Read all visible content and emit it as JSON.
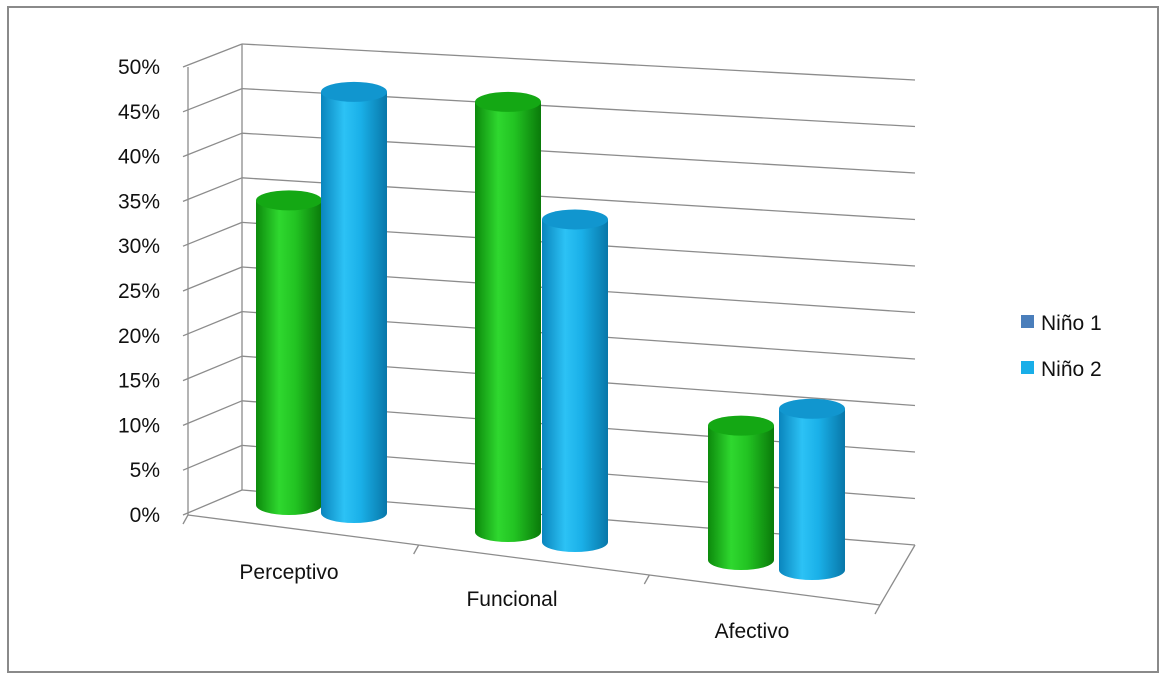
{
  "chart_data": {
    "type": "bar",
    "style": "3d-cylinder",
    "categories": [
      "Perceptivo",
      "Funcional",
      "Afectivo"
    ],
    "series": [
      {
        "name": "Niño 1",
        "values": [
          34,
          48,
          15
        ],
        "color": "#1fbf1f",
        "legend_color": "#4a7ebb"
      },
      {
        "name": "Niño 2",
        "values": [
          47,
          36,
          18
        ],
        "color": "#19aee8",
        "legend_color": "#19aee8"
      }
    ],
    "yticks": [
      "0%",
      "5%",
      "10%",
      "15%",
      "20%",
      "25%",
      "30%",
      "35%",
      "40%",
      "45%",
      "50%"
    ],
    "ylim": [
      0,
      50
    ],
    "grid": true,
    "legend_position": "right"
  }
}
